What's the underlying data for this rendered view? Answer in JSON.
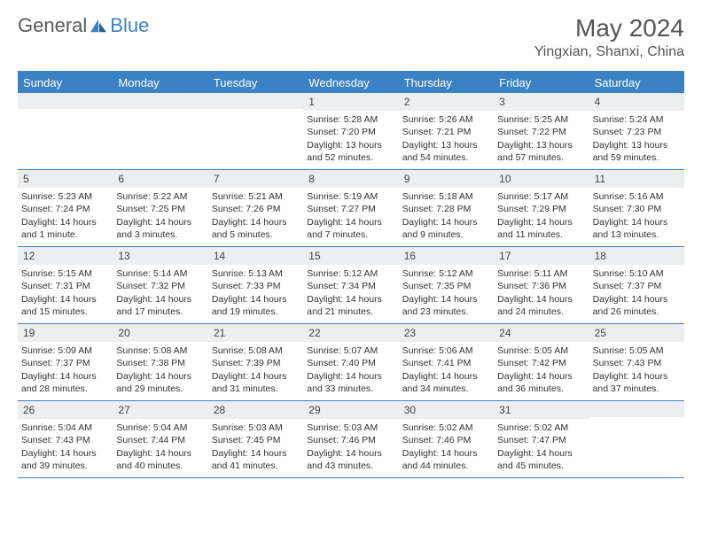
{
  "logo": {
    "text1": "General",
    "text2": "Blue"
  },
  "title": "May 2024",
  "location": "Yingxian, Shanxi, China",
  "colors": {
    "accent": "#3b82c4",
    "header_bg": "#3b82c4",
    "daynum_bg": "#eceef0",
    "text": "#333333",
    "title_text": "#555555"
  },
  "day_names": [
    "Sunday",
    "Monday",
    "Tuesday",
    "Wednesday",
    "Thursday",
    "Friday",
    "Saturday"
  ],
  "weeks": [
    [
      {
        "empty": true
      },
      {
        "empty": true
      },
      {
        "empty": true
      },
      {
        "day": "1",
        "sunrise": "Sunrise: 5:28 AM",
        "sunset": "Sunset: 7:20 PM",
        "daylight": "Daylight: 13 hours and 52 minutes."
      },
      {
        "day": "2",
        "sunrise": "Sunrise: 5:26 AM",
        "sunset": "Sunset: 7:21 PM",
        "daylight": "Daylight: 13 hours and 54 minutes."
      },
      {
        "day": "3",
        "sunrise": "Sunrise: 5:25 AM",
        "sunset": "Sunset: 7:22 PM",
        "daylight": "Daylight: 13 hours and 57 minutes."
      },
      {
        "day": "4",
        "sunrise": "Sunrise: 5:24 AM",
        "sunset": "Sunset: 7:23 PM",
        "daylight": "Daylight: 13 hours and 59 minutes."
      }
    ],
    [
      {
        "day": "5",
        "sunrise": "Sunrise: 5:23 AM",
        "sunset": "Sunset: 7:24 PM",
        "daylight": "Daylight: 14 hours and 1 minute."
      },
      {
        "day": "6",
        "sunrise": "Sunrise: 5:22 AM",
        "sunset": "Sunset: 7:25 PM",
        "daylight": "Daylight: 14 hours and 3 minutes."
      },
      {
        "day": "7",
        "sunrise": "Sunrise: 5:21 AM",
        "sunset": "Sunset: 7:26 PM",
        "daylight": "Daylight: 14 hours and 5 minutes."
      },
      {
        "day": "8",
        "sunrise": "Sunrise: 5:19 AM",
        "sunset": "Sunset: 7:27 PM",
        "daylight": "Daylight: 14 hours and 7 minutes."
      },
      {
        "day": "9",
        "sunrise": "Sunrise: 5:18 AM",
        "sunset": "Sunset: 7:28 PM",
        "daylight": "Daylight: 14 hours and 9 minutes."
      },
      {
        "day": "10",
        "sunrise": "Sunrise: 5:17 AM",
        "sunset": "Sunset: 7:29 PM",
        "daylight": "Daylight: 14 hours and 11 minutes."
      },
      {
        "day": "11",
        "sunrise": "Sunrise: 5:16 AM",
        "sunset": "Sunset: 7:30 PM",
        "daylight": "Daylight: 14 hours and 13 minutes."
      }
    ],
    [
      {
        "day": "12",
        "sunrise": "Sunrise: 5:15 AM",
        "sunset": "Sunset: 7:31 PM",
        "daylight": "Daylight: 14 hours and 15 minutes."
      },
      {
        "day": "13",
        "sunrise": "Sunrise: 5:14 AM",
        "sunset": "Sunset: 7:32 PM",
        "daylight": "Daylight: 14 hours and 17 minutes."
      },
      {
        "day": "14",
        "sunrise": "Sunrise: 5:13 AM",
        "sunset": "Sunset: 7:33 PM",
        "daylight": "Daylight: 14 hours and 19 minutes."
      },
      {
        "day": "15",
        "sunrise": "Sunrise: 5:12 AM",
        "sunset": "Sunset: 7:34 PM",
        "daylight": "Daylight: 14 hours and 21 minutes."
      },
      {
        "day": "16",
        "sunrise": "Sunrise: 5:12 AM",
        "sunset": "Sunset: 7:35 PM",
        "daylight": "Daylight: 14 hours and 23 minutes."
      },
      {
        "day": "17",
        "sunrise": "Sunrise: 5:11 AM",
        "sunset": "Sunset: 7:36 PM",
        "daylight": "Daylight: 14 hours and 24 minutes."
      },
      {
        "day": "18",
        "sunrise": "Sunrise: 5:10 AM",
        "sunset": "Sunset: 7:37 PM",
        "daylight": "Daylight: 14 hours and 26 minutes."
      }
    ],
    [
      {
        "day": "19",
        "sunrise": "Sunrise: 5:09 AM",
        "sunset": "Sunset: 7:37 PM",
        "daylight": "Daylight: 14 hours and 28 minutes."
      },
      {
        "day": "20",
        "sunrise": "Sunrise: 5:08 AM",
        "sunset": "Sunset: 7:38 PM",
        "daylight": "Daylight: 14 hours and 29 minutes."
      },
      {
        "day": "21",
        "sunrise": "Sunrise: 5:08 AM",
        "sunset": "Sunset: 7:39 PM",
        "daylight": "Daylight: 14 hours and 31 minutes."
      },
      {
        "day": "22",
        "sunrise": "Sunrise: 5:07 AM",
        "sunset": "Sunset: 7:40 PM",
        "daylight": "Daylight: 14 hours and 33 minutes."
      },
      {
        "day": "23",
        "sunrise": "Sunrise: 5:06 AM",
        "sunset": "Sunset: 7:41 PM",
        "daylight": "Daylight: 14 hours and 34 minutes."
      },
      {
        "day": "24",
        "sunrise": "Sunrise: 5:05 AM",
        "sunset": "Sunset: 7:42 PM",
        "daylight": "Daylight: 14 hours and 36 minutes."
      },
      {
        "day": "25",
        "sunrise": "Sunrise: 5:05 AM",
        "sunset": "Sunset: 7:43 PM",
        "daylight": "Daylight: 14 hours and 37 minutes."
      }
    ],
    [
      {
        "day": "26",
        "sunrise": "Sunrise: 5:04 AM",
        "sunset": "Sunset: 7:43 PM",
        "daylight": "Daylight: 14 hours and 39 minutes."
      },
      {
        "day": "27",
        "sunrise": "Sunrise: 5:04 AM",
        "sunset": "Sunset: 7:44 PM",
        "daylight": "Daylight: 14 hours and 40 minutes."
      },
      {
        "day": "28",
        "sunrise": "Sunrise: 5:03 AM",
        "sunset": "Sunset: 7:45 PM",
        "daylight": "Daylight: 14 hours and 41 minutes."
      },
      {
        "day": "29",
        "sunrise": "Sunrise: 5:03 AM",
        "sunset": "Sunset: 7:46 PM",
        "daylight": "Daylight: 14 hours and 43 minutes."
      },
      {
        "day": "30",
        "sunrise": "Sunrise: 5:02 AM",
        "sunset": "Sunset: 7:46 PM",
        "daylight": "Daylight: 14 hours and 44 minutes."
      },
      {
        "day": "31",
        "sunrise": "Sunrise: 5:02 AM",
        "sunset": "Sunset: 7:47 PM",
        "daylight": "Daylight: 14 hours and 45 minutes."
      },
      {
        "empty": true
      }
    ]
  ]
}
